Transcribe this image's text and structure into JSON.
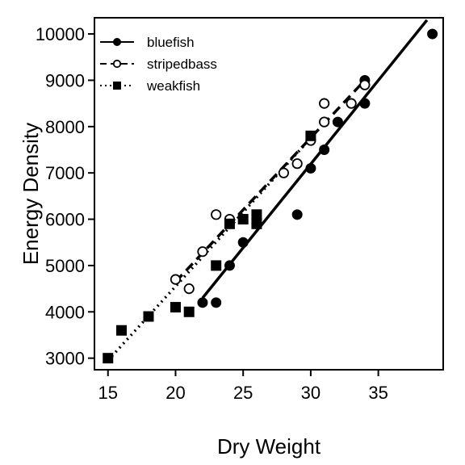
{
  "chart_data": {
    "type": "scatter",
    "xlabel": "Dry Weight",
    "ylabel": "Energy Density",
    "xlim": [
      14.0,
      39.8
    ],
    "ylim": [
      2750,
      10350
    ],
    "xticks": [
      15,
      20,
      25,
      30,
      35
    ],
    "yticks": [
      3000,
      4000,
      5000,
      6000,
      7000,
      8000,
      9000,
      10000
    ],
    "legend_position": "top-left",
    "grid": false,
    "series": [
      {
        "name": "bluefish",
        "marker": "filled-circle",
        "line_style": "solid",
        "points": [
          [
            22,
            4200
          ],
          [
            23,
            4200
          ],
          [
            24,
            5000
          ],
          [
            25,
            5500
          ],
          [
            26,
            5900
          ],
          [
            29,
            6100
          ],
          [
            30,
            7100
          ],
          [
            31,
            7500
          ],
          [
            32,
            8100
          ],
          [
            34,
            8500
          ],
          [
            34,
            9000
          ],
          [
            39,
            10000
          ]
        ],
        "fit": {
          "x": [
            22,
            38.6
          ],
          "y": [
            4300,
            10300
          ]
        }
      },
      {
        "name": "stripedbass",
        "marker": "open-circle",
        "line_style": "dashed",
        "points": [
          [
            20,
            4700
          ],
          [
            21,
            4500
          ],
          [
            22,
            5300
          ],
          [
            23,
            6100
          ],
          [
            24,
            6000
          ],
          [
            28,
            7000
          ],
          [
            29,
            7200
          ],
          [
            30,
            7700
          ],
          [
            31,
            8500
          ],
          [
            31,
            8100
          ],
          [
            33,
            8500
          ],
          [
            34,
            8900
          ]
        ],
        "fit": {
          "x": [
            20,
            34
          ],
          "y": [
            4650,
            9000
          ]
        }
      },
      {
        "name": "weakfish",
        "marker": "filled-square",
        "line_style": "dotted",
        "points": [
          [
            15,
            3000
          ],
          [
            16,
            3600
          ],
          [
            18,
            3900
          ],
          [
            20,
            4100
          ],
          [
            21,
            4000
          ],
          [
            23,
            5000
          ],
          [
            24,
            5900
          ],
          [
            25,
            6000
          ],
          [
            26,
            6100
          ],
          [
            26,
            5900
          ],
          [
            30,
            7800
          ]
        ],
        "fit": {
          "x": [
            15,
            30
          ],
          "y": [
            2950,
            7750
          ]
        }
      }
    ]
  }
}
